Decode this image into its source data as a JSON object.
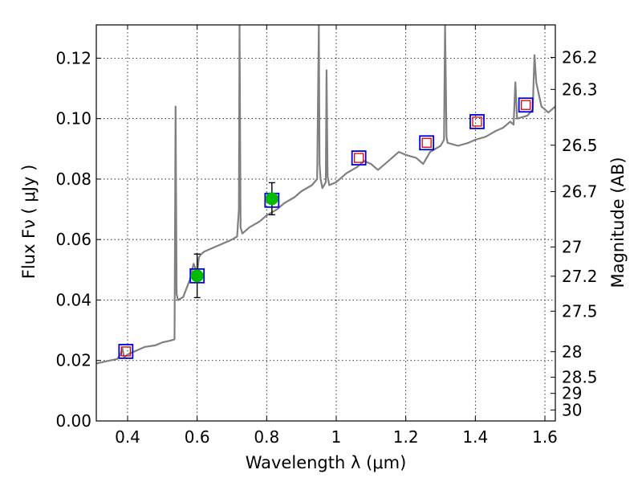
{
  "chart_data": {
    "type": "line",
    "xlabel": "Wavelength  λ (μm)",
    "ylabel": "Flux  Fν  ( μJy )",
    "ylabel_right": "Magnitude (AB)",
    "xlim": [
      0.31,
      1.63
    ],
    "ylim": [
      0.0,
      0.131
    ],
    "grid": true,
    "x_ticks": [
      0.4,
      0.6,
      0.8,
      1.0,
      1.2,
      1.4,
      1.6
    ],
    "x_tick_labels": [
      "0.4",
      "0.6",
      "0.8",
      "1",
      "1.2",
      "1.4",
      "1.6"
    ],
    "y_ticks": [
      0.0,
      0.02,
      0.04,
      0.06,
      0.08,
      0.1,
      0.12
    ],
    "y_tick_labels": [
      "0.00",
      "0.02",
      "0.04",
      "0.06",
      "0.08",
      "0.10",
      "0.12"
    ],
    "right_ticks": [
      26.2,
      26.3,
      26.5,
      26.7,
      27,
      27.2,
      27.5,
      28,
      28.5,
      29,
      30
    ],
    "right_tick_labels": [
      "26.2",
      "26.3",
      "26.5",
      "26.7",
      "27",
      "27.2",
      "27.5",
      "28",
      "28.5",
      "29",
      "30"
    ],
    "colors": {
      "spectrum": "#808080",
      "observed_points": "#00bb00",
      "model_boxes": "#0000dd",
      "model_small_boxes": "#dd0000",
      "error_bars": "#000000",
      "grid": "#000000"
    },
    "series": [
      {
        "name": "model spectrum",
        "kind": "line",
        "x": [
          0.31,
          0.33,
          0.35,
          0.37,
          0.38,
          0.385,
          0.39,
          0.4,
          0.42,
          0.45,
          0.48,
          0.5,
          0.52,
          0.535,
          0.538,
          0.541,
          0.545,
          0.56,
          0.58,
          0.59,
          0.6,
          0.605,
          0.61,
          0.62,
          0.64,
          0.66,
          0.68,
          0.7,
          0.715,
          0.72,
          0.722,
          0.725,
          0.73,
          0.75,
          0.78,
          0.8,
          0.83,
          0.85,
          0.88,
          0.9,
          0.93,
          0.945,
          0.95,
          0.952,
          0.955,
          0.96,
          0.97,
          0.972,
          0.975,
          0.98,
          1.0,
          1.03,
          1.06,
          1.08,
          1.1,
          1.12,
          1.15,
          1.18,
          1.2,
          1.23,
          1.25,
          1.27,
          1.3,
          1.31,
          1.313,
          1.317,
          1.32,
          1.35,
          1.38,
          1.4,
          1.43,
          1.46,
          1.48,
          1.5,
          1.51,
          1.515,
          1.52,
          1.55,
          1.565,
          1.57,
          1.575,
          1.59,
          1.61,
          1.63
        ],
        "y": [
          0.019,
          0.0195,
          0.02,
          0.0205,
          0.022,
          0.024,
          0.021,
          0.022,
          0.023,
          0.0245,
          0.025,
          0.026,
          0.0265,
          0.027,
          0.104,
          0.042,
          0.04,
          0.041,
          0.047,
          0.052,
          0.049,
          0.054,
          0.055,
          0.056,
          0.057,
          0.058,
          0.059,
          0.06,
          0.061,
          0.07,
          0.131,
          0.064,
          0.062,
          0.064,
          0.066,
          0.068,
          0.07,
          0.072,
          0.074,
          0.076,
          0.078,
          0.08,
          0.131,
          0.085,
          0.08,
          0.077,
          0.079,
          0.116,
          0.081,
          0.078,
          0.079,
          0.082,
          0.084,
          0.086,
          0.085,
          0.083,
          0.086,
          0.089,
          0.088,
          0.087,
          0.085,
          0.089,
          0.091,
          0.093,
          0.131,
          0.094,
          0.092,
          0.091,
          0.092,
          0.093,
          0.094,
          0.096,
          0.097,
          0.099,
          0.098,
          0.112,
          0.1,
          0.101,
          0.103,
          0.121,
          0.112,
          0.104,
          0.102,
          0.104
        ]
      },
      {
        "name": "observed photometry",
        "kind": "points_errorbars",
        "x": [
          0.6,
          0.815
        ],
        "y": [
          0.048,
          0.0735
        ],
        "yerr_low": [
          0.0072,
          0.0053
        ],
        "yerr_high": [
          0.0072,
          0.0053
        ]
      },
      {
        "name": "model photometry",
        "kind": "square_markers",
        "x": [
          0.395,
          0.6,
          0.815,
          1.065,
          1.26,
          1.405,
          1.545
        ],
        "y": [
          0.023,
          0.048,
          0.073,
          0.087,
          0.092,
          0.099,
          0.1045
        ]
      },
      {
        "name": "model photometry (inner)",
        "kind": "small_square_markers",
        "x": [
          0.395,
          1.065,
          1.26,
          1.405,
          1.545
        ],
        "y": [
          0.023,
          0.087,
          0.092,
          0.099,
          0.1045
        ]
      }
    ]
  }
}
